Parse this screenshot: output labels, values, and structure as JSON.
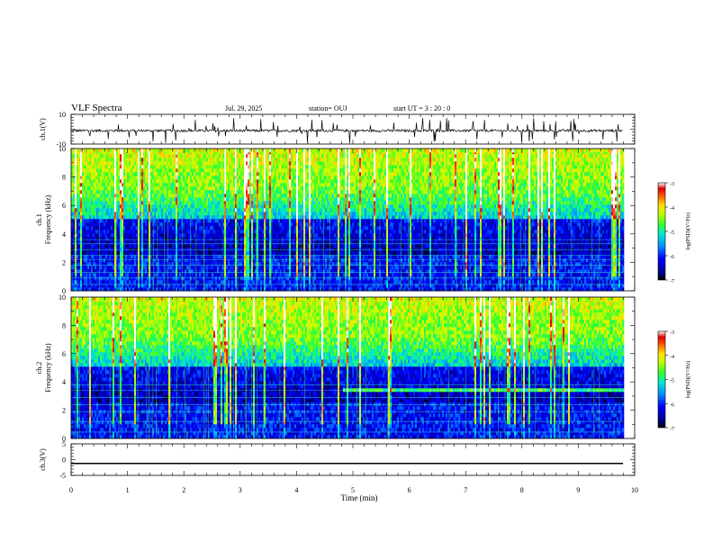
{
  "header": {
    "title": "VLF Spectra",
    "date": "Jul. 29, 2025",
    "station": "station= OUJ",
    "start": "start  UT  =   3 : 20 : 0"
  },
  "colors": {
    "scale": [
      "#000080",
      "#0000ff",
      "#0080ff",
      "#00e0e0",
      "#00ff80",
      "#80ff00",
      "#ffff00",
      "#ff8000",
      "#ff0000",
      "#ffffff"
    ]
  },
  "chart_data": [
    {
      "type": "line",
      "ylabel": "ch.1(V)",
      "ylim": [
        -10,
        10
      ],
      "yticks": [
        "10",
        "-10"
      ],
      "x_range_min": [
        0,
        9.82
      ],
      "description": "noisy waveform around -1 V with spikes"
    },
    {
      "type": "heatmap",
      "ylabel": "ch.1\nFrequency (kHz)",
      "ylim": [
        0,
        10
      ],
      "yticks": [
        "0",
        "2",
        "4",
        "6",
        "8",
        "10"
      ],
      "colorbar": {
        "label": "log(PSD)(V²/Hz)",
        "range": [
          -7,
          -3
        ],
        "ticks": [
          "-3",
          "-4",
          "-5",
          "-6",
          "-7"
        ]
      }
    },
    {
      "type": "heatmap",
      "ylabel": "ch.2\nFrequency (kHz)",
      "ylim": [
        0,
        10
      ],
      "yticks": [
        "0",
        "2",
        "4",
        "6",
        "8",
        "10"
      ],
      "colorbar": {
        "label": "log(PSD)(V²/Hz)",
        "range": [
          -7,
          -3
        ],
        "ticks": [
          "-3",
          "-4",
          "-5",
          "-6",
          "-7"
        ]
      }
    },
    {
      "type": "line",
      "ylabel": "ch.3(V)",
      "ylim": [
        -5,
        5
      ],
      "yticks": [
        "5",
        "0",
        "-5"
      ],
      "value": -1.2
    }
  ],
  "xaxis": {
    "label": "Time (min)",
    "ticks": [
      "0",
      "1",
      "2",
      "3",
      "4",
      "5",
      "6",
      "7",
      "8",
      "9",
      "10"
    ],
    "range": [
      0,
      10
    ]
  },
  "labels": {
    "cb_label": "log(PSD)(V²/Hz)"
  }
}
